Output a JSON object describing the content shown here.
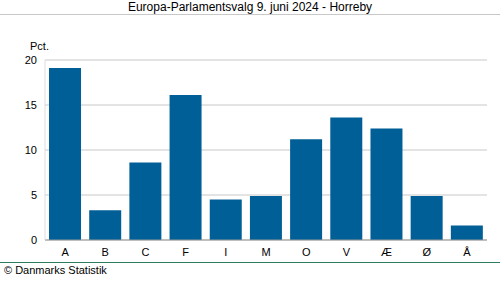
{
  "chart_data": {
    "type": "bar",
    "title": "Europa-Parlamentsvalg 9. juni 2024 - Horreby",
    "y_label": "Pct.",
    "footer": "© Danmarks Statistik",
    "categories": [
      "A",
      "B",
      "C",
      "F",
      "I",
      "M",
      "O",
      "V",
      "Æ",
      "Ø",
      "Å"
    ],
    "values": [
      19.1,
      3.3,
      8.6,
      16.1,
      4.5,
      4.9,
      11.2,
      13.6,
      12.4,
      4.9,
      1.6
    ],
    "color": "#005f96",
    "ylim": [
      0,
      20
    ],
    "yticks": [
      0,
      5,
      10,
      15,
      20
    ],
    "grid": true
  }
}
